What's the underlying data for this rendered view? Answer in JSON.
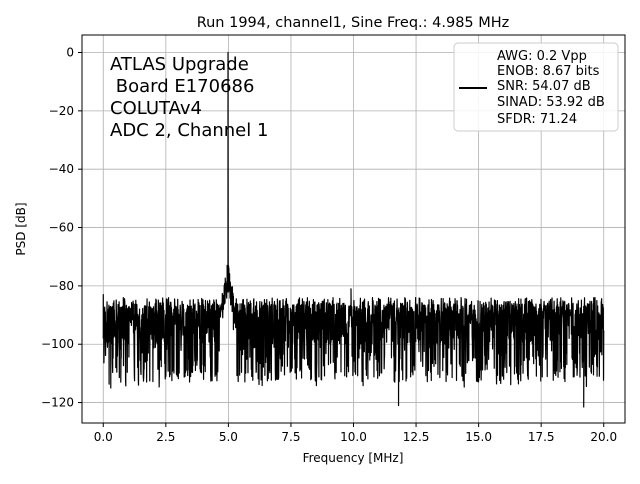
{
  "chart_data": {
    "type": "line",
    "title": "Run 1994, channel1, Sine Freq.: 4.985 MHz",
    "xlabel": "Frequency [MHz]",
    "ylabel": "PSD [dB]",
    "xlim": [
      -0.85,
      20.85
    ],
    "ylim": [
      -127,
      6
    ],
    "xticks": [
      0.0,
      2.5,
      5.0,
      7.5,
      10.0,
      12.5,
      15.0,
      17.5,
      20.0
    ],
    "xtick_labels": [
      "0.0",
      "2.5",
      "5.0",
      "7.5",
      "10.0",
      "12.5",
      "15.0",
      "17.5",
      "20.0"
    ],
    "yticks": [
      0,
      -20,
      -40,
      -60,
      -80,
      -100,
      -120
    ],
    "ytick_labels": [
      "0",
      "−20",
      "−40",
      "−60",
      "−80",
      "−100",
      "−120"
    ],
    "grid": true,
    "line_color": "#000000",
    "annotation": {
      "lines": [
        "ATLAS Upgrade",
        " Board E170686",
        "COLUTAv4",
        "ADC 2, Channel 1"
      ]
    },
    "legend": {
      "position": "top-right",
      "lines": [
        "AWG: 0.2 Vpp",
        "ENOB: 8.67 bits",
        "SNR: 54.07 dB",
        "SINAD: 53.92 dB",
        "SFDR: 71.24"
      ]
    },
    "series": [
      {
        "noise_floor_db": -93,
        "noise_upper_db": -84,
        "noise_lower_db": -115,
        "noise_min_db": -121.5,
        "peak_freq_mhz": 4.985,
        "peak_db": 0,
        "x": [
          0.0,
          0.1,
          0.2,
          0.3,
          0.4,
          0.5,
          0.6,
          0.7,
          0.8,
          0.9,
          1.0,
          1.2,
          1.4,
          1.6,
          1.8,
          2.0,
          2.5,
          3.0,
          3.5,
          4.0,
          4.5,
          4.8,
          4.9,
          4.95,
          4.985,
          5.02,
          5.05,
          5.1,
          5.2,
          5.5,
          6.0,
          7.0,
          8.0,
          9.0,
          9.9,
          10.0,
          11.0,
          11.8,
          12.0,
          13.0,
          14.0,
          15.0,
          16.0,
          17.0,
          18.0,
          19.0,
          19.2,
          20.0
        ],
        "y": [
          -83,
          -100,
          -90,
          -115,
          -86,
          -108,
          -92,
          -113,
          -84,
          -101,
          -95,
          -86,
          -112,
          -90,
          -103,
          -88,
          -111,
          -92,
          -104,
          -89,
          -96,
          -88,
          -79,
          -73,
          0,
          -74,
          -80,
          -86,
          -95,
          -102,
          -97,
          -112,
          -95,
          -107,
          -81,
          -98,
          -106,
          -121,
          -93,
          -109,
          -94,
          -105,
          -112,
          -92,
          -109,
          -97,
          -121.5,
          -96
        ]
      }
    ]
  }
}
